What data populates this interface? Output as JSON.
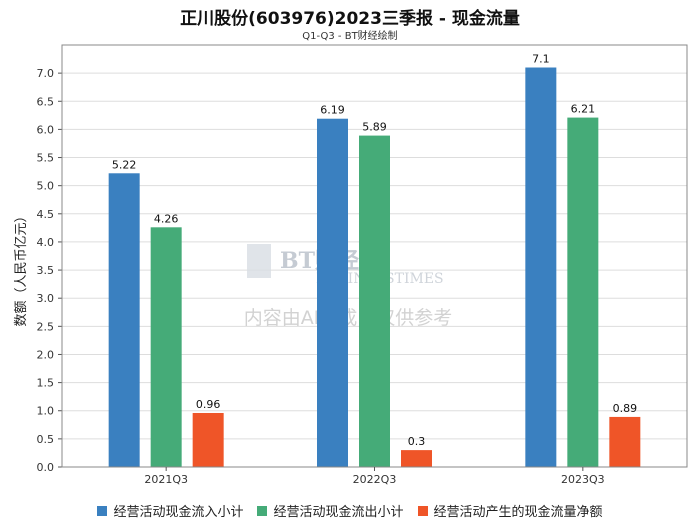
{
  "title": "正川股份(603976)2023三季报 - 现金流量",
  "subtitle": "Q1-Q3 - BT财经绘制",
  "watermark": {
    "logo_text": "BT财经",
    "logo_sub": "BUSINESSTIMES",
    "notice": "内容由AI生成，仅供参考"
  },
  "chart_data": {
    "type": "bar",
    "title": "正川股份(603976)2023三季报 - 现金流量",
    "subtitle": "Q1-Q3 - BT财经绘制",
    "xlabel": "",
    "ylabel": "数额（人民币亿元）",
    "categories": [
      "2021Q3",
      "2022Q3",
      "2023Q3"
    ],
    "ylim": [
      0,
      7.5
    ],
    "yticks": [
      0.0,
      0.5,
      1.0,
      1.5,
      2.0,
      2.5,
      3.0,
      3.5,
      4.0,
      4.5,
      5.0,
      5.5,
      6.0,
      6.5,
      7.0
    ],
    "grid": true,
    "legend_position": "bottom",
    "series": [
      {
        "name": "经营活动现金流入小计",
        "color": "#3a80c0",
        "values": [
          5.22,
          6.19,
          7.1
        ]
      },
      {
        "name": "经营活动现金流出小计",
        "color": "#45ab78",
        "values": [
          4.26,
          5.89,
          6.21
        ]
      },
      {
        "name": "经营活动产生的现金流量净额",
        "color": "#ef5528",
        "values": [
          0.96,
          0.3,
          0.89
        ]
      }
    ]
  }
}
